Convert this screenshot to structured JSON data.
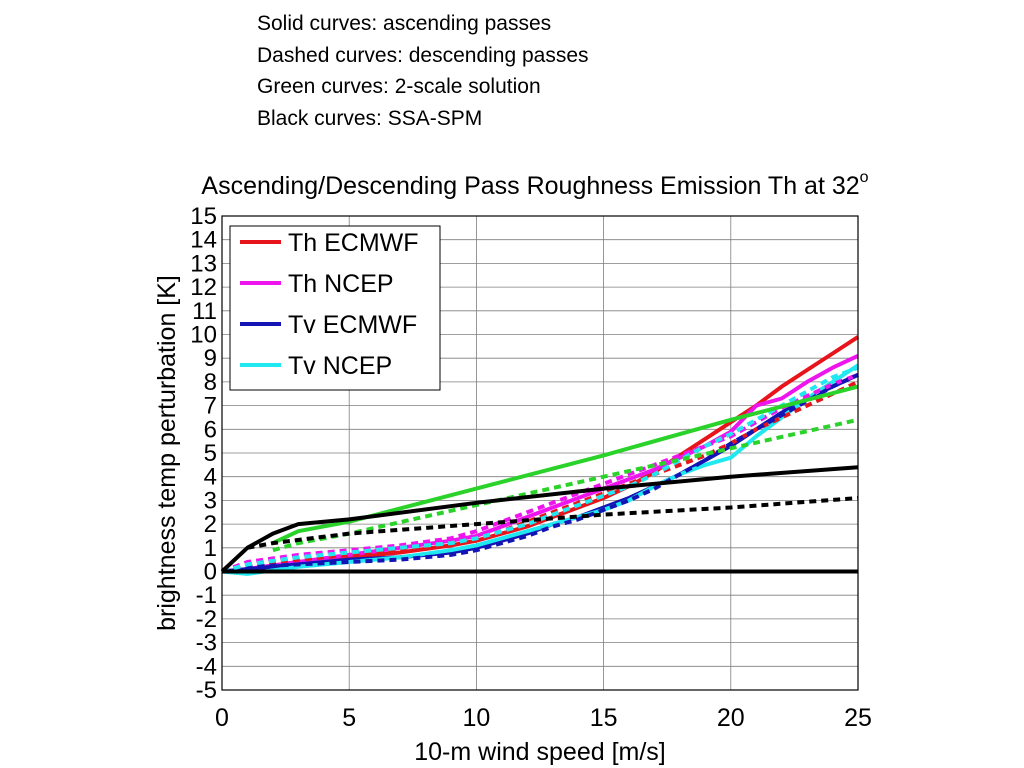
{
  "notes": [
    "Solid curves: ascending passes",
    "Dashed curves: descending passes",
    "Green curves: 2-scale solution",
    "Black curves: SSA-SPM"
  ],
  "chart_data": {
    "type": "line",
    "title": "Ascending/Descending Pass Roughness Emission Th at 32",
    "title_superscript": "o",
    "xlabel": "10-m wind speed [m/s]",
    "ylabel": "brightness temp perturbation [K]",
    "xlim": [
      0,
      25
    ],
    "ylim": [
      -5,
      15
    ],
    "x_ticks": [
      "0",
      "5",
      "10",
      "15",
      "20",
      "25"
    ],
    "y_ticks": [
      "-5",
      "-4",
      "-3",
      "-2",
      "-1",
      "0",
      "1",
      "2",
      "3",
      "4",
      "5",
      "6",
      "7",
      "8",
      "9",
      "10",
      "11",
      "12",
      "13",
      "14",
      "15"
    ],
    "grid": true,
    "legend_position": "top-left",
    "legend": [
      {
        "name": "Th ECMWF",
        "color": "#e8141b"
      },
      {
        "name": "Th NCEP",
        "color": "#ee14ee"
      },
      {
        "name": "Tv ECMWF",
        "color": "#1414b4"
      },
      {
        "name": "Tv NCEP",
        "color": "#20e8f0"
      }
    ],
    "series": [
      {
        "color": "#e8141b",
        "dash": false,
        "x": [
          0,
          1,
          3,
          5,
          7,
          9,
          10,
          11,
          12,
          13,
          14,
          15,
          16,
          17,
          18,
          19,
          20,
          21,
          22,
          23,
          24,
          25
        ],
        "y": [
          0,
          0.1,
          0.4,
          0.6,
          0.8,
          1.1,
          1.3,
          1.6,
          1.9,
          2.3,
          2.7,
          3.1,
          3.6,
          4.2,
          4.9,
          5.6,
          6.3,
          7.0,
          7.8,
          8.5,
          9.2,
          9.9
        ]
      },
      {
        "color": "#ee14ee",
        "dash": false,
        "x": [
          0,
          1,
          3,
          5,
          7,
          9,
          10,
          11,
          12,
          13,
          14,
          15,
          16,
          17,
          18,
          19,
          20,
          21,
          22,
          23,
          24,
          25
        ],
        "y": [
          0,
          0.1,
          0.4,
          0.7,
          1.0,
          1.3,
          1.5,
          1.9,
          2.3,
          2.7,
          3.1,
          3.5,
          3.9,
          4.3,
          4.8,
          5.3,
          5.9,
          7.0,
          7.3,
          8.0,
          8.6,
          9.1
        ]
      },
      {
        "color": "#1414b4",
        "dash": false,
        "x": [
          0,
          1,
          3,
          5,
          7,
          9,
          10,
          11,
          12,
          13,
          14,
          15,
          16,
          17,
          18,
          19,
          20,
          21,
          22,
          23,
          24,
          25
        ],
        "y": [
          0,
          0.1,
          0.3,
          0.5,
          0.6,
          0.8,
          1.0,
          1.3,
          1.6,
          2.0,
          2.3,
          2.7,
          3.1,
          3.6,
          4.1,
          4.7,
          5.3,
          6.0,
          6.7,
          7.3,
          7.8,
          8.3
        ]
      },
      {
        "color": "#20e8f0",
        "dash": false,
        "x": [
          0,
          1,
          3,
          5,
          7,
          9,
          10,
          11,
          12,
          13,
          14,
          15,
          16,
          17,
          18,
          19,
          20,
          21,
          22,
          23,
          24,
          25
        ],
        "y": [
          0,
          -0.1,
          0.2,
          0.4,
          0.6,
          0.9,
          1.1,
          1.4,
          1.7,
          2.0,
          2.3,
          2.6,
          3.0,
          3.6,
          4.1,
          4.5,
          4.8,
          5.7,
          6.5,
          7.3,
          8.0,
          8.7
        ]
      },
      {
        "color": "#e8141b",
        "dash": true,
        "x": [
          0,
          1,
          3,
          5,
          7,
          9,
          10,
          11,
          12,
          13,
          14,
          15,
          16,
          17,
          18,
          19,
          20,
          21,
          22,
          23,
          24,
          25
        ],
        "y": [
          0,
          0.3,
          0.5,
          0.7,
          0.9,
          1.2,
          1.4,
          1.7,
          2.1,
          2.5,
          2.9,
          3.3,
          3.7,
          4.1,
          4.5,
          4.9,
          5.4,
          6.0,
          6.5,
          7.0,
          7.5,
          8.0
        ]
      },
      {
        "color": "#ee14ee",
        "dash": true,
        "x": [
          0,
          1,
          3,
          5,
          7,
          9,
          10,
          11,
          12,
          13,
          14,
          15,
          16,
          17,
          18,
          19,
          20,
          21,
          22,
          23,
          24,
          25
        ],
        "y": [
          0,
          0.4,
          0.7,
          0.9,
          1.1,
          1.4,
          1.7,
          2.1,
          2.5,
          2.9,
          3.3,
          3.7,
          4.1,
          4.5,
          4.9,
          5.3,
          5.7,
          6.3,
          6.9,
          7.4,
          7.9,
          8.3
        ]
      },
      {
        "color": "#1414b4",
        "dash": true,
        "x": [
          0,
          1,
          3,
          5,
          7,
          9,
          10,
          11,
          12,
          13,
          14,
          15,
          16,
          17,
          18,
          19,
          20,
          21,
          22,
          23,
          24,
          25
        ],
        "y": [
          0,
          0.2,
          0.3,
          0.4,
          0.5,
          0.7,
          0.9,
          1.2,
          1.5,
          1.9,
          2.2,
          2.6,
          3.0,
          3.5,
          4.1,
          4.7,
          5.4,
          6.0,
          6.6,
          7.2,
          7.8,
          8.3
        ]
      },
      {
        "color": "#20e8f0",
        "dash": true,
        "x": [
          0,
          1,
          3,
          5,
          7,
          9,
          10,
          11,
          12,
          13,
          14,
          15,
          16,
          17,
          18,
          19,
          20,
          21,
          22,
          23,
          24,
          25
        ],
        "y": [
          0,
          0.3,
          0.6,
          0.8,
          1.0,
          1.2,
          1.4,
          1.7,
          2.0,
          2.4,
          2.8,
          3.2,
          3.6,
          4.1,
          4.7,
          5.3,
          5.8,
          6.4,
          7.0,
          7.6,
          8.2,
          8.6
        ]
      },
      {
        "color": "#2ad32a",
        "dash": false,
        "x": [
          2,
          3,
          5,
          10,
          15,
          20,
          25
        ],
        "y": [
          1.2,
          1.7,
          2.1,
          3.5,
          4.9,
          6.4,
          7.8
        ]
      },
      {
        "color": "#2ad32a",
        "dash": true,
        "x": [
          2,
          3,
          5,
          10,
          15,
          20,
          25
        ],
        "y": [
          0.9,
          1.2,
          1.6,
          2.8,
          4.0,
          5.2,
          6.4
        ]
      },
      {
        "color": "#000000",
        "dash": false,
        "x": [
          0,
          1,
          2,
          3,
          5,
          10,
          15,
          20,
          25
        ],
        "y": [
          0,
          1.0,
          1.6,
          2.0,
          2.2,
          2.9,
          3.5,
          4.0,
          4.4
        ]
      },
      {
        "color": "#000000",
        "dash": true,
        "x": [
          1,
          2,
          5,
          10,
          15,
          20,
          25
        ],
        "y": [
          1.0,
          1.2,
          1.6,
          2.0,
          2.4,
          2.7,
          3.1
        ]
      },
      {
        "color": "#000000",
        "dash": false,
        "x": [
          0,
          25
        ],
        "y": [
          0,
          0
        ]
      }
    ]
  }
}
